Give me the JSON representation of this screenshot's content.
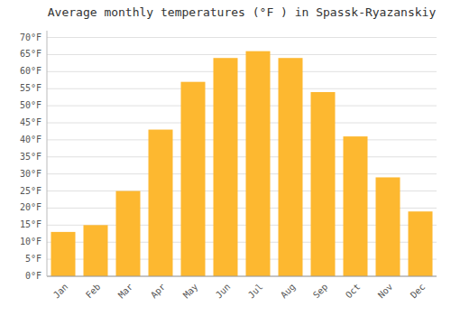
{
  "chart_data": {
    "type": "bar",
    "title": "Average monthly temperatures (°F ) in Spassk-Ryazanskiy",
    "categories": [
      "Jan",
      "Feb",
      "Mar",
      "Apr",
      "May",
      "Jun",
      "Jul",
      "Aug",
      "Sep",
      "Oct",
      "Nov",
      "Dec"
    ],
    "values": [
      13,
      15,
      25,
      43,
      57,
      64,
      66,
      64,
      54,
      41,
      29,
      19
    ],
    "color": "#FDB830",
    "ylim": [
      0,
      72
    ],
    "yticks": [
      {
        "value": 0,
        "label": "0°F"
      },
      {
        "value": 5,
        "label": "5°F"
      },
      {
        "value": 10,
        "label": "10°F"
      },
      {
        "value": 15,
        "label": "15°F"
      },
      {
        "value": 20,
        "label": "20°F"
      },
      {
        "value": 25,
        "label": "25°F"
      },
      {
        "value": 30,
        "label": "30°F"
      },
      {
        "value": 35,
        "label": "35°F"
      },
      {
        "value": 40,
        "label": "40°F"
      },
      {
        "value": 45,
        "label": "45°F"
      },
      {
        "value": 50,
        "label": "50°F"
      },
      {
        "value": 55,
        "label": "55°F"
      },
      {
        "value": 60,
        "label": "60°F"
      },
      {
        "value": 65,
        "label": "65°F"
      },
      {
        "value": 70,
        "label": "70°F"
      }
    ],
    "grid": true
  }
}
